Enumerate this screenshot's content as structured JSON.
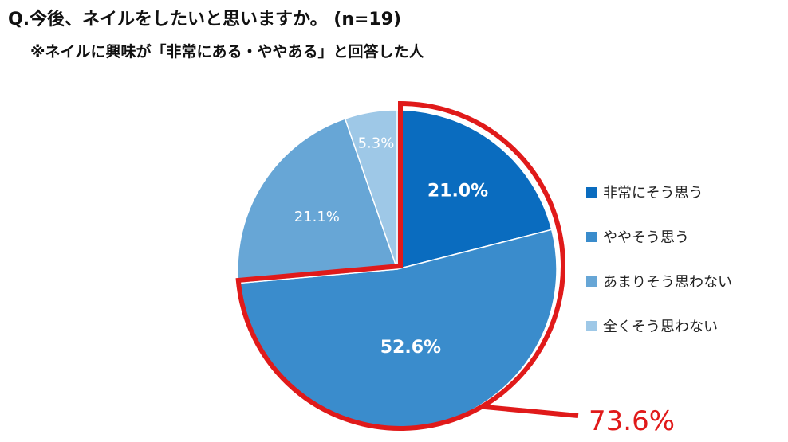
{
  "header": {
    "title": "Q.今後、ネイルをしたいと思いますか。 (n=19)",
    "subtitle": "※ネイルに興味が「非常にある・ややある」と回答した人"
  },
  "chart_data": {
    "type": "pie",
    "categories": [
      "非常にそう思う",
      "ややそう思う",
      "あまりそう思わない",
      "全くそう思わない"
    ],
    "values": [
      21.0,
      52.6,
      21.1,
      5.3
    ],
    "labels": [
      "21.0%",
      "52.6%",
      "21.1%",
      "5.3%"
    ],
    "colors": [
      "#0a6cbf",
      "#3a8ccc",
      "#67a6d6",
      "#9ec8e7"
    ],
    "legend_position": "right",
    "highlight": {
      "label": "73.6%",
      "color": "#e01a1a",
      "covers": [
        "非常にそう思う",
        "ややそう思う"
      ]
    }
  }
}
